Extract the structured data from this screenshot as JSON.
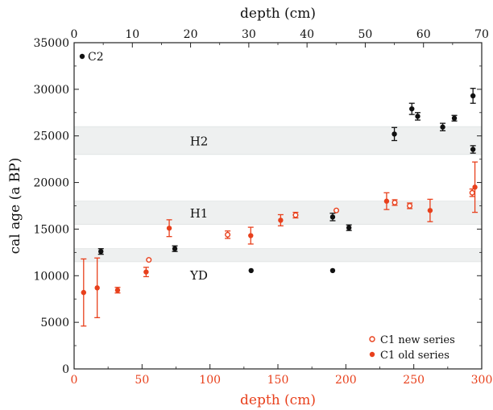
{
  "chart_data": {
    "type": "scatter",
    "ylabel": "cal age (a BP)",
    "xlabel_bottom": "depth (cm)",
    "xlabel_top": "depth (cm)",
    "y_axis": {
      "range": [
        0,
        35000
      ],
      "ticks": [
        "0",
        "5000",
        "10000",
        "15000",
        "20000",
        "25000",
        "30000",
        "35000"
      ]
    },
    "x_bottom_axis": {
      "range": [
        0,
        300
      ],
      "ticks": [
        "0",
        "50",
        "100",
        "150",
        "200",
        "250",
        "300"
      ],
      "color": "#e8401c"
    },
    "x_top_axis": {
      "range": [
        0,
        70
      ],
      "ticks": [
        "0",
        "10",
        "20",
        "30",
        "40",
        "50",
        "60",
        "70"
      ],
      "color": "#222222"
    },
    "bands": [
      {
        "label": "H2",
        "y_range": [
          23000,
          26000
        ]
      },
      {
        "label": "H1",
        "y_range": [
          15500,
          18000
        ]
      },
      {
        "label": "YD",
        "y_range": [
          11500,
          12900
        ]
      }
    ],
    "series": [
      {
        "name": "C2",
        "axis": "top",
        "marker": "filled",
        "color": "#111111",
        "points": [
          {
            "x": 4.6,
            "y": 12600,
            "err": 300
          },
          {
            "x": 17.3,
            "y": 12900,
            "err": 300
          },
          {
            "x": 30.4,
            "y": 10550,
            "err": 0
          },
          {
            "x": 44.4,
            "y": 16300,
            "err": 400
          },
          {
            "x": 44.4,
            "y": 10550,
            "err": 0
          },
          {
            "x": 47.2,
            "y": 15150,
            "err": 300
          },
          {
            "x": 55.0,
            "y": 25200,
            "err": 700
          },
          {
            "x": 58.0,
            "y": 27900,
            "err": 600
          },
          {
            "x": 59.0,
            "y": 27100,
            "err": 400
          },
          {
            "x": 63.3,
            "y": 25950,
            "err": 400
          },
          {
            "x": 65.3,
            "y": 26900,
            "err": 300
          },
          {
            "x": 68.5,
            "y": 29300,
            "err": 800
          },
          {
            "x": 68.5,
            "y": 23550,
            "err": 400
          }
        ]
      },
      {
        "name": "C1 new series",
        "axis": "bottom",
        "marker": "open",
        "color": "#e8401c",
        "points": [
          {
            "x": 55,
            "y": 11700,
            "err": 0
          },
          {
            "x": 113,
            "y": 14400,
            "err": 400
          },
          {
            "x": 163,
            "y": 16500,
            "err": 300
          },
          {
            "x": 193,
            "y": 17000,
            "err": 0
          },
          {
            "x": 236,
            "y": 17850,
            "err": 300
          },
          {
            "x": 247,
            "y": 17500,
            "err": 300
          },
          {
            "x": 293,
            "y": 18900,
            "err": 400
          }
        ]
      },
      {
        "name": "C1 old series",
        "axis": "bottom",
        "marker": "filled",
        "color": "#e8401c",
        "points": [
          {
            "x": 7,
            "y": 8200,
            "err": 3600
          },
          {
            "x": 17,
            "y": 8700,
            "err": 3200
          },
          {
            "x": 32,
            "y": 8450,
            "err": 300
          },
          {
            "x": 53,
            "y": 10400,
            "err": 500
          },
          {
            "x": 70,
            "y": 15100,
            "err": 900
          },
          {
            "x": 130,
            "y": 14300,
            "err": 900
          },
          {
            "x": 152,
            "y": 15950,
            "err": 600
          },
          {
            "x": 230,
            "y": 18000,
            "err": 900
          },
          {
            "x": 262,
            "y": 17000,
            "err": 1200
          },
          {
            "x": 295,
            "y": 19500,
            "err": 2700
          }
        ]
      }
    ],
    "legend": {
      "placement": "bottom-right",
      "entries": [
        "C1 new series",
        "C1 old series"
      ]
    },
    "series_label_c2": "C2",
    "band_color": "#eef0f0",
    "axis_color": "#222222"
  }
}
